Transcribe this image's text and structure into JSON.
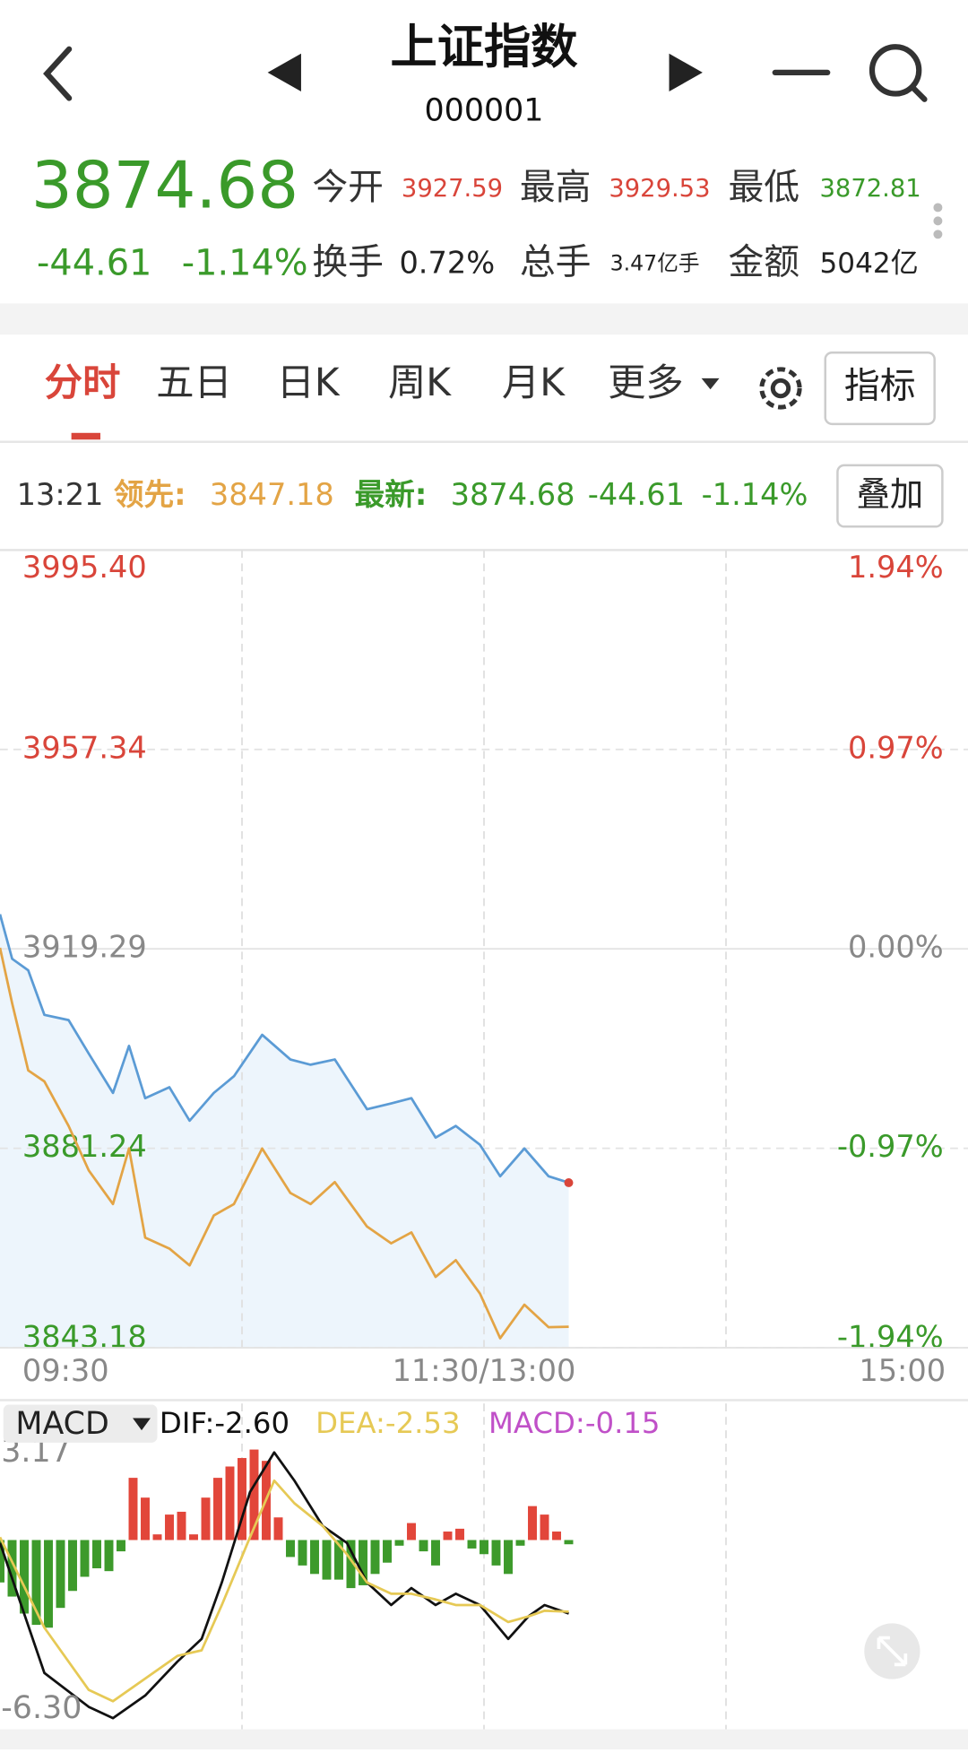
{
  "header": {
    "title": "上证指数",
    "code": "000001"
  },
  "quote": {
    "price": "3874.68",
    "change": "-44.61",
    "change_pct": "-1.14%",
    "stats": [
      {
        "label": "今开",
        "value": "3927.59"
      },
      {
        "label": "最高",
        "value": "3929.53"
      },
      {
        "label": "最低",
        "value": "3872.81"
      },
      {
        "label": "换手",
        "value": "0.72%"
      },
      {
        "label": "总手",
        "value": "3.47亿手"
      },
      {
        "label": "金额",
        "value": "5042亿"
      }
    ]
  },
  "tabs": [
    "分时",
    "五日",
    "日K",
    "周K",
    "月K",
    "更多"
  ],
  "indicator_button": "指标",
  "info_bar": {
    "time": "13:21",
    "lead_label": "领先:",
    "lead_value": "3847.18",
    "latest_label": "最新:",
    "latest_value": "3874.68",
    "latest_change": "-44.61",
    "latest_pct": "-1.14%"
  },
  "overlay_button": "叠加",
  "macd_header": {
    "name": "MACD",
    "dif": "DIF:-2.60",
    "dea": "DEA:-2.53",
    "macd": "MACD:-0.15"
  },
  "chart_data": [
    {
      "type": "line",
      "xlim": [
        0,
        240
      ],
      "xticks": [
        {
          "value": 0,
          "label": "09:30"
        },
        {
          "value": 120,
          "label": "11:30/13:00"
        },
        {
          "value": 240,
          "label": "15:00"
        }
      ],
      "xgrid": [
        60,
        120,
        180
      ],
      "ylim": [
        3843.18,
        3995.4
      ],
      "yticks": [
        {
          "value": 3995.4,
          "label": "3995.40"
        },
        3957.34,
        3919.29,
        3881.24,
        3843.18
      ],
      "y2lim": [
        -1.94,
        1.94
      ],
      "y2ticks": [
        {
          "value": 1.94,
          "label": "1.94%"
        },
        {
          "value": 0.97,
          "label": "0.97%"
        },
        {
          "value": 0,
          "label": "0.00%"
        },
        {
          "value": -0.97,
          "label": "-0.97%"
        },
        {
          "value": -1.94,
          "label": "-1.94%"
        }
      ],
      "x": [
        0,
        3,
        7,
        11,
        17,
        22,
        28,
        32,
        36,
        42,
        47,
        53,
        58,
        65,
        72,
        77,
        83,
        91,
        97,
        102,
        108,
        113,
        119,
        124,
        130,
        136,
        141
      ],
      "series": [
        {
          "color": "#5b9bd5",
          "fill": "#edf5fc",
          "values": [
            3925.9,
            3917.4,
            3915.2,
            3906.7,
            3905.7,
            3899.3,
            3891.8,
            3900.8,
            3890.8,
            3892.9,
            3886.5,
            3891.8,
            3895.0,
            3902.9,
            3898.2,
            3897.2,
            3898.2,
            3888.7,
            3889.8,
            3890.8,
            3883.3,
            3885.5,
            3881.9,
            3875.9,
            3881.2,
            3875.9,
            3874.68
          ]
        },
        {
          "color": "#e3a445",
          "values": [
            3919.5,
            3908.9,
            3896.1,
            3894.0,
            3885.5,
            3877.0,
            3870.6,
            3881.2,
            3864.2,
            3862.1,
            3858.9,
            3868.4,
            3870.6,
            3881.2,
            3872.7,
            3870.6,
            3874.8,
            3866.3,
            3863.1,
            3865.2,
            3856.7,
            3859.9,
            3853.5,
            3845.0,
            3851.4,
            3847.1,
            3847.18
          ]
        }
      ]
    },
    {
      "type": "bar",
      "xlim": [
        0,
        240
      ],
      "ylim": [
        -6.3,
        3.17
      ],
      "yticks": [
        3.17,
        {
          "value": -6.3,
          "label": "-6.30"
        }
      ],
      "up_color": "#e2463a",
      "down_color": "#3d9a2b",
      "x": [
        0,
        3,
        6,
        9,
        12,
        15,
        18,
        21,
        24,
        27,
        30,
        33,
        36,
        39,
        42,
        45,
        48,
        51,
        54,
        57,
        60,
        63,
        66,
        69,
        72,
        75,
        78,
        81,
        84,
        87,
        90,
        93,
        96,
        99,
        102,
        105,
        108,
        111,
        114,
        117,
        120,
        123,
        126,
        129,
        132,
        135,
        138,
        141
      ],
      "values": [
        -1.5,
        -2.0,
        -2.6,
        -3.0,
        -3.1,
        -2.4,
        -1.8,
        -1.3,
        -1.0,
        -1.1,
        -0.4,
        2.2,
        1.5,
        0.2,
        0.9,
        1.0,
        0.2,
        1.5,
        2.2,
        2.6,
        2.9,
        3.2,
        2.8,
        0.8,
        -0.6,
        -0.9,
        -1.2,
        -1.4,
        -1.4,
        -1.7,
        -1.6,
        -1.2,
        -0.8,
        -0.2,
        0.6,
        -0.4,
        -0.9,
        0.3,
        0.4,
        -0.3,
        -0.5,
        -0.9,
        -1.2,
        -0.2,
        1.2,
        0.9,
        0.3,
        -0.15
      ],
      "series": [
        {
          "type": "line",
          "color": "#111111",
          "x": [
            0,
            11,
            22,
            28,
            36,
            44,
            50,
            55,
            62,
            68,
            73,
            80,
            86,
            91,
            97,
            102,
            108,
            113,
            119,
            126,
            131,
            135,
            141
          ],
          "values": [
            -0.1,
            -4.7,
            -5.9,
            -6.3,
            -5.5,
            -4.3,
            -3.5,
            -1.5,
            1.7,
            3.1,
            2.1,
            0.5,
            -0.1,
            -1.5,
            -2.3,
            -1.7,
            -2.3,
            -1.9,
            -2.3,
            -3.5,
            -2.7,
            -2.3,
            -2.6
          ]
        },
        {
          "type": "line",
          "color": "#e6c955",
          "x": [
            0,
            11,
            22,
            28,
            36,
            44,
            50,
            55,
            62,
            68,
            73,
            80,
            86,
            91,
            97,
            102,
            108,
            113,
            119,
            126,
            131,
            135,
            141
          ],
          "values": [
            0.1,
            -3.1,
            -5.3,
            -5.7,
            -4.9,
            -4.1,
            -3.9,
            -2.3,
            0.1,
            2.1,
            1.3,
            0.5,
            -0.5,
            -1.5,
            -1.9,
            -1.9,
            -2.1,
            -2.3,
            -2.3,
            -2.9,
            -2.7,
            -2.5,
            -2.53
          ]
        }
      ]
    }
  ]
}
